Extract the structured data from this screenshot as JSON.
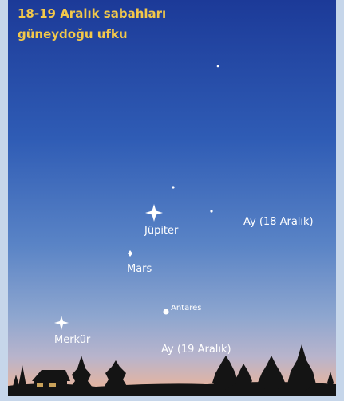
{
  "title": {
    "line1": "18-19 Aralık sabahları",
    "line2": "güneydoğu ufku"
  },
  "labels": {
    "jupiter": "Jüpiter",
    "mars": "Mars",
    "mercury": "Merkür",
    "antares": "Antares",
    "moon18": "Ay (18 Aralık)",
    "moon19": "Ay (19 Aralık)"
  }
}
